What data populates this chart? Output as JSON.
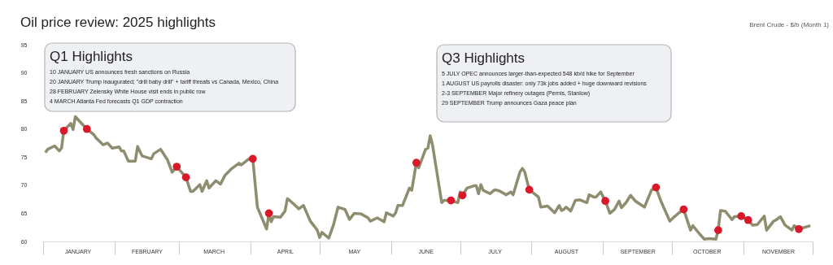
{
  "chart_data": {
    "type": "line",
    "title": "Oil price review: 2025 highlights",
    "subtitle": "Brent Crude - $/b (Month 1)",
    "annotations": [
      "Q1 Highlights",
      "10 JANUARY US announces fresh sanctions on Russia",
      "20 JANUARY Trump inaugurated; \"drill baby drill\" + tariff threats vs Canada, Mexico, China",
      "28 FEBRUARY Zelensky White House visit ends in public row",
      "4 MARCH Atlanta Fed forecasts Q1 GDP contraction",
      "Q3 Highlights",
      "5 JULY OPEC announces larger-than-expected 548 kb/d hike for September",
      "1 AUGUST US payrolls disaster: only 73k jobs added + huge downward revisions",
      "2-3 SEPTEMBER Major refinery outages (Pernis, Stanlow)",
      "29 SEPTEMBER Trump announces Gaza peace plan"
    ],
    "xlim": [
      "2025-01-01",
      "2025-12-01"
    ],
    "xticks": [
      {
        "value": "2025-01-01",
        "label": null
      },
      {
        "value": "2025-01-16",
        "label": "JANUARY"
      },
      {
        "value": "2025-02-01",
        "label": null
      },
      {
        "value": "2025-02-15",
        "label": "FEBRUARY"
      },
      {
        "value": "2025-03-01",
        "label": null
      },
      {
        "value": "2025-03-16",
        "label": "MARCH"
      },
      {
        "value": "2025-04-01",
        "label": null
      },
      {
        "value": "2025-04-16",
        "label": "APRIL"
      },
      {
        "value": "2025-05-01",
        "label": null
      },
      {
        "value": "2025-05-16",
        "label": "MAY"
      },
      {
        "value": "2025-06-01",
        "label": null
      },
      {
        "value": "2025-06-16",
        "label": "JUNE"
      },
      {
        "value": "2025-07-01",
        "label": null
      },
      {
        "value": "2025-07-16",
        "label": "JULY"
      },
      {
        "value": "2025-08-01",
        "label": null
      },
      {
        "value": "2025-08-16",
        "label": "AUGUST"
      },
      {
        "value": "2025-09-01",
        "label": null
      },
      {
        "value": "2025-09-16",
        "label": "SEPTEMBER"
      },
      {
        "value": "2025-10-01",
        "label": null
      },
      {
        "value": "2025-10-16",
        "label": "OCTOBER"
      },
      {
        "value": "2025-11-01",
        "label": null
      },
      {
        "value": "2025-11-16",
        "label": "NOVEMBER"
      },
      {
        "value": "2025-12-01",
        "label": null
      }
    ],
    "ylim": [
      60,
      95
    ],
    "yticks": [
      60,
      65,
      70,
      75,
      80,
      85,
      90,
      95
    ],
    "series": [
      {
        "type": "line",
        "color": "#8e8d6f",
        "x": [
          "2025-01-02",
          "2025-01-03",
          "2025-01-06",
          "2025-01-08",
          "2025-01-09",
          "2025-01-10",
          "2025-01-13",
          "2025-01-14",
          "2025-01-15",
          "2025-01-17",
          "2025-01-20",
          "2025-01-23",
          "2025-01-24",
          "2025-01-27",
          "2025-01-29",
          "2025-01-31",
          "2025-02-03",
          "2025-02-04",
          "2025-02-05",
          "2025-02-07",
          "2025-02-10",
          "2025-02-11",
          "2025-02-13",
          "2025-02-17",
          "2025-02-18",
          "2025-02-21",
          "2025-02-24",
          "2025-02-25",
          "2025-02-26",
          "2025-02-28",
          "2025-03-04",
          "2025-03-06",
          "2025-03-07",
          "2025-03-10",
          "2025-03-11",
          "2025-03-13",
          "2025-03-14",
          "2025-03-17",
          "2025-03-19",
          "2025-03-21",
          "2025-03-24",
          "2025-03-27",
          "2025-03-28",
          "2025-03-31",
          "2025-04-02",
          "2025-04-04",
          "2025-04-08",
          "2025-04-09",
          "2025-04-10",
          "2025-04-11",
          "2025-04-14",
          "2025-04-16",
          "2025-04-17",
          "2025-04-18",
          "2025-04-22",
          "2025-04-24",
          "2025-04-27",
          "2025-04-30",
          "2025-05-01",
          "2025-05-02",
          "2025-05-05",
          "2025-05-07",
          "2025-05-09",
          "2025-05-12",
          "2025-05-14",
          "2025-05-16",
          "2025-05-19",
          "2025-05-22",
          "2025-05-23",
          "2025-05-26",
          "2025-05-29",
          "2025-05-30",
          "2025-06-02",
          "2025-06-03",
          "2025-06-04",
          "2025-06-06",
          "2025-06-09",
          "2025-06-10",
          "2025-06-12",
          "2025-06-13",
          "2025-06-16",
          "2025-06-17",
          "2025-06-18",
          "2025-06-19",
          "2025-06-23",
          "2025-06-24",
          "2025-06-27",
          "2025-06-30",
          "2025-07-01",
          "2025-07-02",
          "2025-07-04",
          "2025-07-07",
          "2025-07-08",
          "2025-07-09",
          "2025-07-10",
          "2025-07-11",
          "2025-07-14",
          "2025-07-16",
          "2025-07-18",
          "2025-07-21",
          "2025-07-23",
          "2025-07-24",
          "2025-07-27",
          "2025-07-28",
          "2025-07-29",
          "2025-07-31",
          "2025-08-04",
          "2025-08-05",
          "2025-08-08",
          "2025-08-11",
          "2025-08-13",
          "2025-08-14",
          "2025-08-15",
          "2025-08-16",
          "2025-08-18",
          "2025-08-20",
          "2025-08-22",
          "2025-08-25",
          "2025-08-26",
          "2025-08-28",
          "2025-08-29",
          "2025-08-31",
          "2025-09-02",
          "2025-09-04",
          "2025-09-06",
          "2025-09-08",
          "2025-09-09",
          "2025-09-11",
          "2025-09-13",
          "2025-09-15",
          "2025-09-19",
          "2025-09-22",
          "2025-09-24",
          "2025-09-26",
          "2025-09-30",
          "2025-10-02",
          "2025-10-04",
          "2025-10-06",
          "2025-10-09",
          "2025-10-10",
          "2025-10-13",
          "2025-10-15",
          "2025-10-17",
          "2025-10-20",
          "2025-10-21",
          "2025-10-22",
          "2025-10-24",
          "2025-10-27",
          "2025-10-28",
          "2025-10-31",
          "2025-11-03",
          "2025-11-05",
          "2025-11-07",
          "2025-11-10",
          "2025-11-11",
          "2025-11-14",
          "2025-11-15",
          "2025-11-17",
          "2025-11-19",
          "2025-11-22",
          "2025-11-23",
          "2025-11-25",
          "2025-11-30"
        ],
        "values": [
          75.8,
          76.4,
          77.0,
          76.1,
          76.6,
          79.7,
          81.0,
          79.9,
          82.2,
          81.3,
          80.0,
          79.0,
          78.4,
          77.2,
          77.5,
          76.6,
          76.8,
          76.1,
          76.1,
          74.3,
          74.3,
          76.9,
          75.2,
          74.7,
          75.6,
          76.4,
          74.5,
          73.4,
          72.3,
          73.3,
          71.4,
          68.9,
          68.9,
          70.1,
          68.9,
          70.8,
          69.5,
          70.8,
          70.2,
          71.8,
          73.0,
          73.9,
          73.6,
          74.6,
          74.7,
          66.1,
          62.2,
          65.0,
          63.5,
          64.4,
          64.3,
          65.4,
          67.6,
          67.3,
          65.8,
          66.4,
          63.6,
          62.0,
          60.7,
          61.6,
          60.6,
          62.9,
          66.1,
          65.7,
          63.9,
          65.0,
          64.9,
          64.2,
          63.6,
          64.2,
          63.5,
          65.1,
          64.5,
          65.1,
          66.4,
          66.4,
          69.5,
          69.1,
          74.0,
          73.1,
          76.4,
          76.6,
          78.8,
          77.2,
          66.9,
          67.3,
          67.3,
          66.9,
          68.8,
          68.2,
          69.5,
          69.9,
          69.9,
          68.5,
          70.1,
          69.1,
          68.5,
          69.2,
          69.0,
          68.3,
          68.8,
          68.3,
          72.4,
          73.0,
          72.4,
          69.2,
          67.9,
          66.1,
          66.3,
          65.1,
          66.4,
          65.5,
          65.7,
          66.1,
          65.4,
          67.3,
          67.4,
          66.9,
          68.3,
          67.9,
          67.9,
          68.8,
          67.2,
          65.0,
          65.7,
          67.2,
          66.0,
          66.9,
          68.2,
          67.2,
          66.1,
          69.1,
          69.6,
          67.3,
          63.6,
          64.4,
          65.1,
          65.7,
          62.0,
          62.8,
          61.3,
          60.4,
          60.5,
          60.4,
          62.0,
          65.5,
          65.4,
          63.9,
          64.4,
          64.5,
          63.8,
          62.9,
          63.0,
          64.5,
          62.0,
          63.6,
          63.8,
          64.4,
          62.9,
          62.0,
          62.8,
          62.2,
          62.8
        ]
      },
      {
        "type": "scatter",
        "marker": "circle",
        "color": "#d7192a",
        "x": [
          "2025-01-10",
          "2025-01-20",
          "2025-02-28",
          "2025-03-04",
          "2025-04-02",
          "2025-04-09",
          "2025-06-12",
          "2025-06-27",
          "2025-07-02",
          "2025-07-31",
          "2025-09-02",
          "2025-09-24",
          "2025-10-06",
          "2025-10-21",
          "2025-10-31",
          "2025-11-03",
          "2025-11-25"
        ],
        "values": [
          79.7,
          80.0,
          73.3,
          71.4,
          74.7,
          65.0,
          74.0,
          67.3,
          68.2,
          69.2,
          67.2,
          69.6,
          65.7,
          62.0,
          64.5,
          63.8,
          62.2
        ]
      }
    ]
  }
}
